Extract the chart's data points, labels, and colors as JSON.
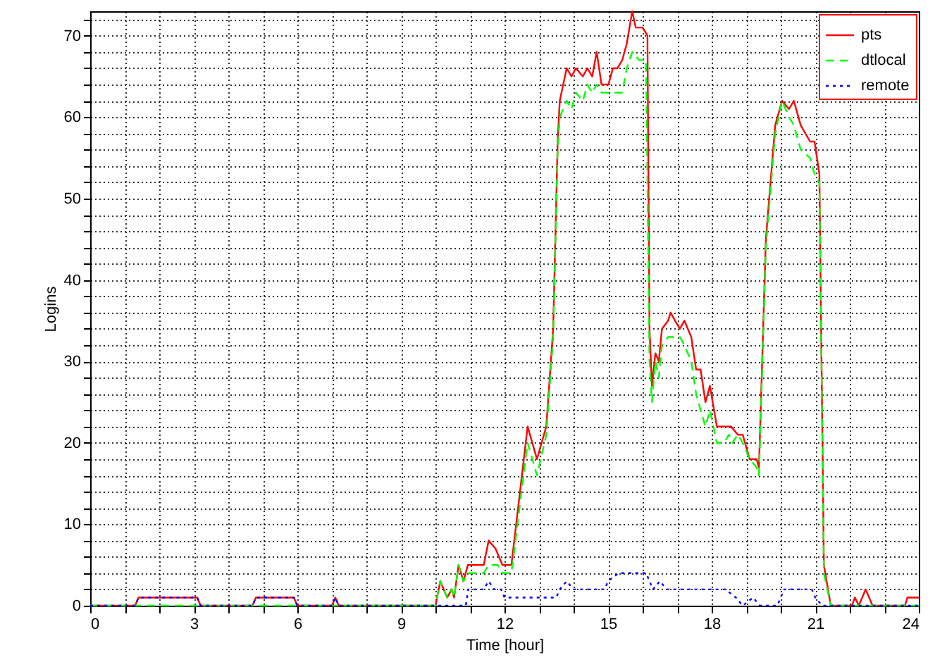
{
  "chart_data": {
    "type": "line",
    "xlabel": "Time [hour]",
    "ylabel": "Logins",
    "xlim": [
      0,
      24
    ],
    "ylim": [
      0,
      73
    ],
    "xticks": [
      0,
      {
        "value": 1,
        "label": null
      },
      {
        "value": 2,
        "label": null
      },
      3,
      {
        "value": 4,
        "label": null
      },
      {
        "value": 5,
        "label": null
      },
      6,
      {
        "value": 7,
        "label": null
      },
      {
        "value": 8,
        "label": null
      },
      9,
      {
        "value": 10,
        "label": null
      },
      {
        "value": 11,
        "label": null
      },
      12,
      {
        "value": 13,
        "label": null
      },
      {
        "value": 14,
        "label": null
      },
      15,
      {
        "value": 16,
        "label": null
      },
      {
        "value": 17,
        "label": null
      },
      18,
      {
        "value": 19,
        "label": null
      },
      {
        "value": 20,
        "label": null
      },
      21,
      {
        "value": 22,
        "label": null
      },
      {
        "value": 23,
        "label": null
      },
      24
    ],
    "yticks": [
      0,
      {
        "value": 2,
        "label": null
      },
      {
        "value": 4,
        "label": null
      },
      {
        "value": 6,
        "label": null
      },
      {
        "value": 8,
        "label": null
      },
      10,
      {
        "value": 12,
        "label": null
      },
      {
        "value": 14,
        "label": null
      },
      {
        "value": 16,
        "label": null
      },
      {
        "value": 18,
        "label": null
      },
      20,
      {
        "value": 22,
        "label": null
      },
      {
        "value": 24,
        "label": null
      },
      {
        "value": 26,
        "label": null
      },
      {
        "value": 28,
        "label": null
      },
      30,
      {
        "value": 32,
        "label": null
      },
      {
        "value": 34,
        "label": null
      },
      {
        "value": 36,
        "label": null
      },
      {
        "value": 38,
        "label": null
      },
      40,
      {
        "value": 42,
        "label": null
      },
      {
        "value": 44,
        "label": null
      },
      {
        "value": 46,
        "label": null
      },
      {
        "value": 48,
        "label": null
      },
      50,
      {
        "value": 52,
        "label": null
      },
      {
        "value": 54,
        "label": null
      },
      {
        "value": 56,
        "label": null
      },
      {
        "value": 58,
        "label": null
      },
      60,
      {
        "value": 62,
        "label": null
      },
      {
        "value": 64,
        "label": null
      },
      {
        "value": 66,
        "label": null
      },
      {
        "value": 68,
        "label": null
      },
      70,
      {
        "value": 72,
        "label": null
      }
    ],
    "grid": true,
    "legend": "top right",
    "marker": "none",
    "series": [
      {
        "name": "pts",
        "color": "#ff0000",
        "line_style": "solid",
        "x": [
          0,
          1.3,
          1.4,
          3.1,
          3.2,
          4.7,
          4.8,
          5.9,
          6.0,
          7.0,
          7.1,
          7.2,
          10.0,
          10.14,
          10.34,
          10.47,
          10.54,
          10.67,
          10.81,
          10.94,
          11.4,
          11.54,
          11.74,
          11.94,
          12.2,
          12.67,
          12.94,
          13.21,
          13.41,
          13.54,
          13.6,
          13.8,
          13.94,
          14.07,
          14.27,
          14.4,
          14.54,
          14.67,
          14.81,
          15.01,
          15.14,
          15.27,
          15.41,
          15.54,
          15.7,
          15.8,
          16.0,
          16.14,
          16.2,
          16.27,
          16.37,
          16.47,
          16.56,
          16.74,
          16.81,
          16.94,
          17.08,
          17.21,
          17.41,
          17.55,
          17.68,
          17.82,
          17.95,
          18.15,
          18.56,
          18.76,
          18.9,
          19.1,
          19.3,
          19.37,
          19.57,
          19.84,
          20.04,
          20.24,
          20.38,
          20.58,
          20.85,
          20.98,
          21.12,
          21.25,
          21.45,
          22.06,
          22.15,
          22.26,
          22.46,
          22.66,
          23.6,
          23.67,
          24
        ],
        "values": [
          0,
          0,
          1,
          1,
          0,
          0,
          1,
          1,
          0,
          0,
          1,
          0,
          0,
          3,
          1,
          2,
          1,
          5,
          3,
          5,
          5,
          8,
          7,
          5,
          5,
          22,
          18,
          22,
          34,
          57,
          62,
          66,
          65,
          66,
          65,
          66,
          65,
          68,
          64,
          64,
          66,
          66,
          67,
          69,
          73,
          71,
          71,
          70,
          34,
          27,
          31,
          30,
          34,
          35,
          36,
          35,
          34,
          35,
          33,
          29,
          29,
          25,
          27,
          22,
          22,
          21,
          21,
          18,
          18,
          17,
          45,
          59,
          62,
          61,
          62,
          59,
          57,
          57,
          53,
          5,
          0,
          0,
          1,
          0,
          2,
          0,
          0,
          1,
          1
        ]
      },
      {
        "name": "dtlocal",
        "color": "#00ff00",
        "line_style": "dashed",
        "x": [
          0,
          10.0,
          10.14,
          10.34,
          10.47,
          10.54,
          10.67,
          10.81,
          10.94,
          11.1,
          11.4,
          11.54,
          11.8,
          11.94,
          12.2,
          12.67,
          12.94,
          13.21,
          13.41,
          13.54,
          13.6,
          13.8,
          13.94,
          14.07,
          14.27,
          14.4,
          14.54,
          14.67,
          14.81,
          15.0,
          15.41,
          15.54,
          15.7,
          15.9,
          16.1,
          16.2,
          16.27,
          16.37,
          16.47,
          16.56,
          16.74,
          16.81,
          17.08,
          17.21,
          17.41,
          17.55,
          17.68,
          17.82,
          17.95,
          18.15,
          18.36,
          18.5,
          18.6,
          18.76,
          18.9,
          19.1,
          19.3,
          19.37,
          19.57,
          19.84,
          20.04,
          20.24,
          20.38,
          20.58,
          20.85,
          20.98,
          21.12,
          21.25,
          21.45,
          24
        ],
        "values": [
          0,
          0,
          3,
          1,
          2,
          1,
          5,
          3,
          4,
          4,
          4,
          5,
          5,
          4,
          4,
          20,
          16,
          21,
          33,
          56,
          60,
          62,
          61,
          63,
          62,
          64,
          63,
          64,
          63,
          63,
          63,
          66,
          68,
          67,
          67,
          30,
          25,
          30,
          28,
          32,
          33,
          33,
          33,
          32,
          30,
          26,
          24,
          22,
          24,
          20,
          20,
          21,
          20,
          21,
          20,
          18,
          17,
          16,
          44,
          58,
          62,
          60,
          59,
          56,
          55,
          53,
          52,
          4,
          0,
          0
        ]
      },
      {
        "name": "remote",
        "color": "#0000ff",
        "line_style": "dotted",
        "x": [
          0,
          1.3,
          1.4,
          3.1,
          3.2,
          4.7,
          4.8,
          5.9,
          6.0,
          7.0,
          7.1,
          7.2,
          10.88,
          10.95,
          11.4,
          11.54,
          11.7,
          11.9,
          12.0,
          12.5,
          12.9,
          13.2,
          13.5,
          13.6,
          13.8,
          14.0,
          14.9,
          15.0,
          15.3,
          16.1,
          16.2,
          16.3,
          16.5,
          16.7,
          18.4,
          18.7,
          18.9,
          19.2,
          19.4,
          19.9,
          20.1,
          20.9,
          21.0,
          21.2,
          24
        ],
        "values": [
          0,
          0,
          1,
          1,
          0,
          0,
          1,
          1,
          0,
          0,
          1,
          0,
          0,
          2,
          2,
          3,
          2,
          2,
          1,
          1,
          1,
          1,
          1,
          2,
          3,
          2,
          2,
          3,
          4,
          4,
          3,
          2,
          3,
          2,
          2,
          1,
          0,
          1,
          0,
          0,
          2,
          2,
          1,
          0,
          0
        ]
      }
    ]
  }
}
